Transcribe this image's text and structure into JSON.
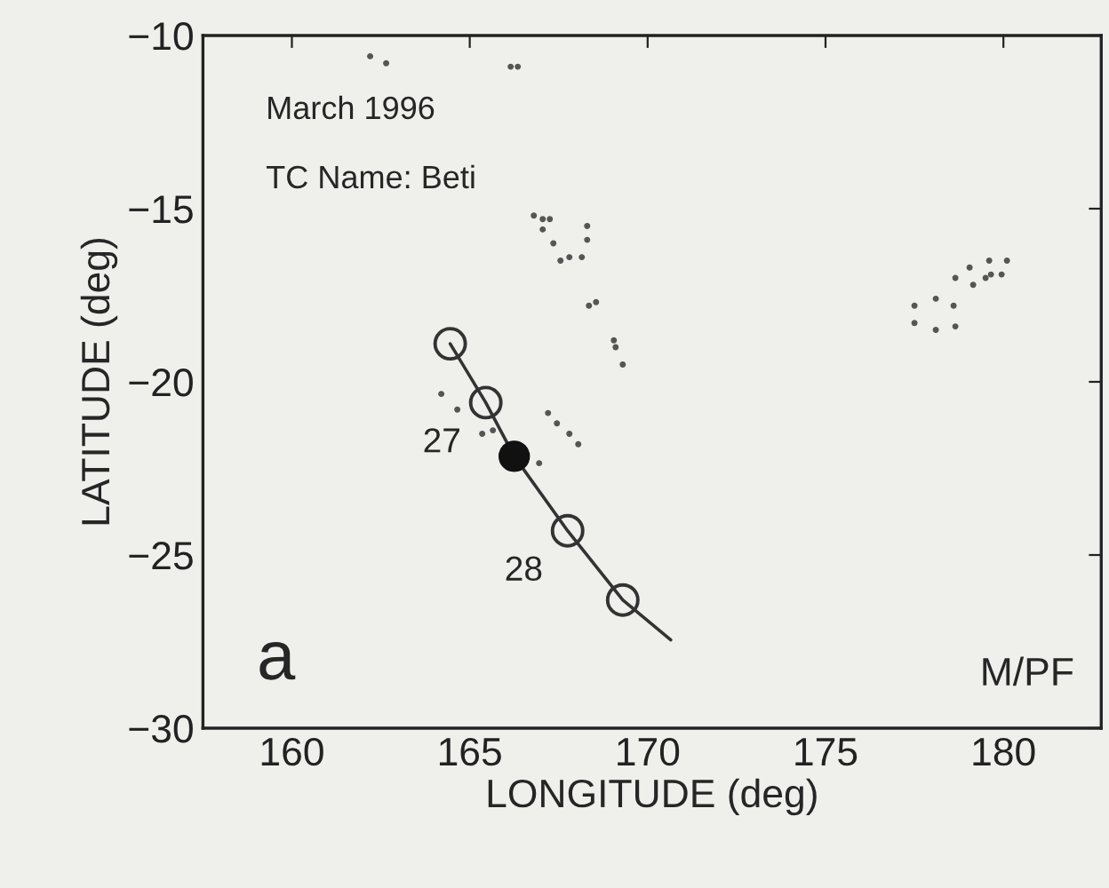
{
  "chart_data": {
    "type": "scatter",
    "xlabel": "LONGITUDE (deg)",
    "ylabel": "LATITUDE (deg)",
    "xlim": [
      157.5,
      182.75
    ],
    "xticks": [
      160,
      165,
      170,
      175,
      180
    ],
    "ylim": [
      -30,
      -10
    ],
    "yticks": [
      -30,
      -25,
      -20,
      -15,
      -10
    ],
    "grid": false,
    "legend": false,
    "annotations": [
      "March 1996",
      "TC Name: Beti",
      {
        "text": "27",
        "x": 165.45,
        "y": -20.6
      },
      {
        "text": "28",
        "x": 167.75,
        "y": -24.3
      },
      "a",
      "M/PF"
    ],
    "series": [
      {
        "type": "line",
        "color": "#333333",
        "line_style": "solid",
        "marker": "none",
        "x": [
          164.45,
          165.45,
          166.25,
          167.75,
          169.3,
          170.65
        ],
        "values": [
          -18.9,
          -20.6,
          -22.15,
          -24.3,
          -26.3,
          -27.45
        ]
      },
      {
        "color": "#333333",
        "marker": "circle",
        "x": [
          164.45,
          165.45,
          167.75,
          169.3
        ],
        "values": [
          -18.9,
          -20.6,
          -24.3,
          -26.3
        ]
      },
      {
        "color": "#111111",
        "marker": "circle",
        "x": [
          166.25
        ],
        "values": [
          -22.15
        ]
      },
      {
        "color": "#555555",
        "marker": "circle",
        "x": [
          162.2,
          162.65,
          166.15,
          166.35,
          166.8,
          167.05,
          167.25,
          167.05,
          167.35,
          167.55,
          167.8,
          168.15,
          168.3,
          168.3,
          168.35,
          168.55,
          169.05,
          169.1,
          169.3,
          164.2,
          164.65,
          167.2,
          167.45,
          167.8,
          168.05,
          165.35,
          165.65,
          166.95,
          177.5,
          178.1,
          178.6,
          177.5,
          178.1,
          178.65,
          178.65,
          179.05,
          179.15,
          179.5,
          179.6,
          179.65,
          179.95,
          180.1
        ],
        "values": [
          -10.6,
          -10.8,
          -10.9,
          -10.9,
          -15.2,
          -15.3,
          -15.3,
          -15.6,
          -16.0,
          -16.5,
          -16.4,
          -16.4,
          -15.9,
          -15.5,
          -17.8,
          -17.7,
          -18.8,
          -19.0,
          -19.5,
          -20.35,
          -20.8,
          -20.9,
          -21.2,
          -21.5,
          -21.8,
          -21.5,
          -21.4,
          -22.35,
          -17.8,
          -17.6,
          -17.8,
          -18.3,
          -18.5,
          -18.4,
          -17.0,
          -16.7,
          -17.2,
          -17.0,
          -16.5,
          -16.9,
          -16.9,
          -16.5
        ]
      }
    ]
  }
}
